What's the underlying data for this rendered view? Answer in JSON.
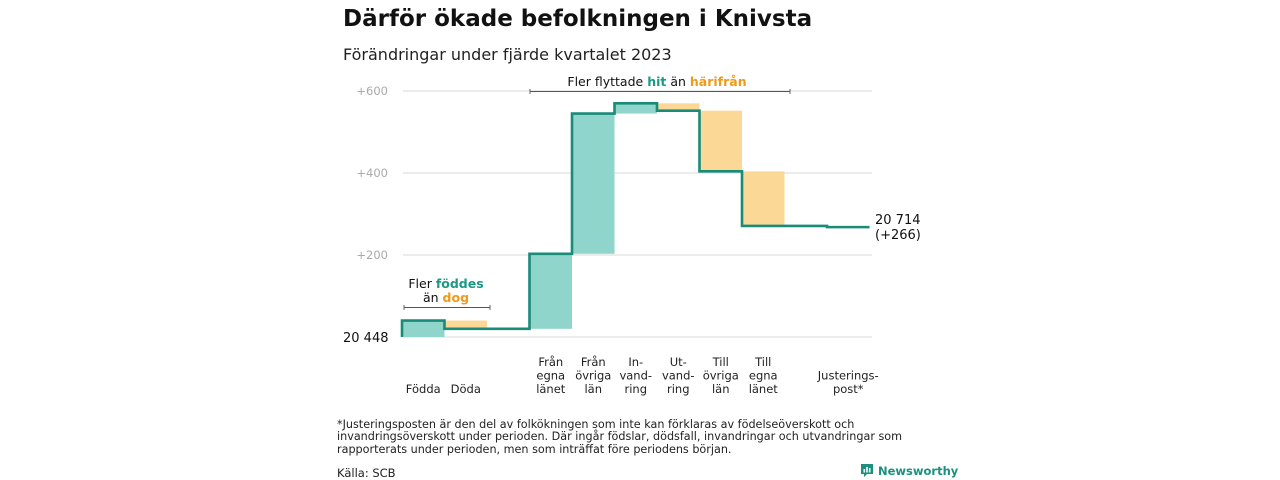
{
  "title": "Därför ökade befolkningen i Knivsta",
  "subtitle": "Förändringar under fjärde kvartalet 2023",
  "colors": {
    "increase_fill": "#8fd5cb",
    "decrease_fill": "#fbd896",
    "line": "#1a8a79",
    "accent_teal": "#1a9a86",
    "accent_orange": "#f09a1a",
    "grid": "#d9d9d9",
    "tick": "#aaaaaa"
  },
  "chart_data": {
    "type": "waterfall",
    "title": "Därför ökade befolkningen i Knivsta",
    "subtitle": "Förändringar under fjärde kvartalet 2023",
    "start_value": 20448,
    "start_label": "20  448",
    "end_value": 20714,
    "end_label": "20 714",
    "end_change_label": "(+266)",
    "ylim": [
      0,
      600
    ],
    "yticks": [
      200,
      400,
      600
    ],
    "ytick_labels": [
      "+200",
      "+400",
      "+600"
    ],
    "grid": true,
    "steps": [
      {
        "label": [
          "Födda"
        ],
        "change": 40
      },
      {
        "label": [
          "Döda"
        ],
        "change": -20
      },
      {
        "label": [],
        "change": 0
      },
      {
        "label": [
          "Från",
          "egna",
          "länet"
        ],
        "change": 183
      },
      {
        "label": [
          "Från",
          "övriga",
          "län"
        ],
        "change": 342
      },
      {
        "label": [
          "In-",
          "vand-",
          "ring"
        ],
        "change": 25
      },
      {
        "label": [
          "Ut-",
          "vand-",
          "ring"
        ],
        "change": -18
      },
      {
        "label": [
          "Till",
          "övriga",
          "län"
        ],
        "change": -148
      },
      {
        "label": [
          "Till",
          "egna",
          "länet"
        ],
        "change": -133
      },
      {
        "label": [],
        "change": 0
      },
      {
        "label": [
          "Justerings-",
          "post*"
        ],
        "change": -3
      }
    ],
    "annotations": {
      "births": {
        "line1": "Fler",
        "hl1": "föddes",
        "line2": "än",
        "hl2": "dog"
      },
      "migration": {
        "pre": "Fler flyttade",
        "hl1": "hit",
        "mid": "än",
        "hl2": "härifrån"
      }
    }
  },
  "footnote": "*Justeringsposten är den del av folkökningen som inte kan förklaras av födelseöverskott och invandringsöverskott under perioden. Där ingår födslar, dödsfall, invandringar och utvandringar som rapporterats under perioden, men som inträffat före periodens början.",
  "source": "Källa: SCB",
  "brand": "Newsworthy"
}
